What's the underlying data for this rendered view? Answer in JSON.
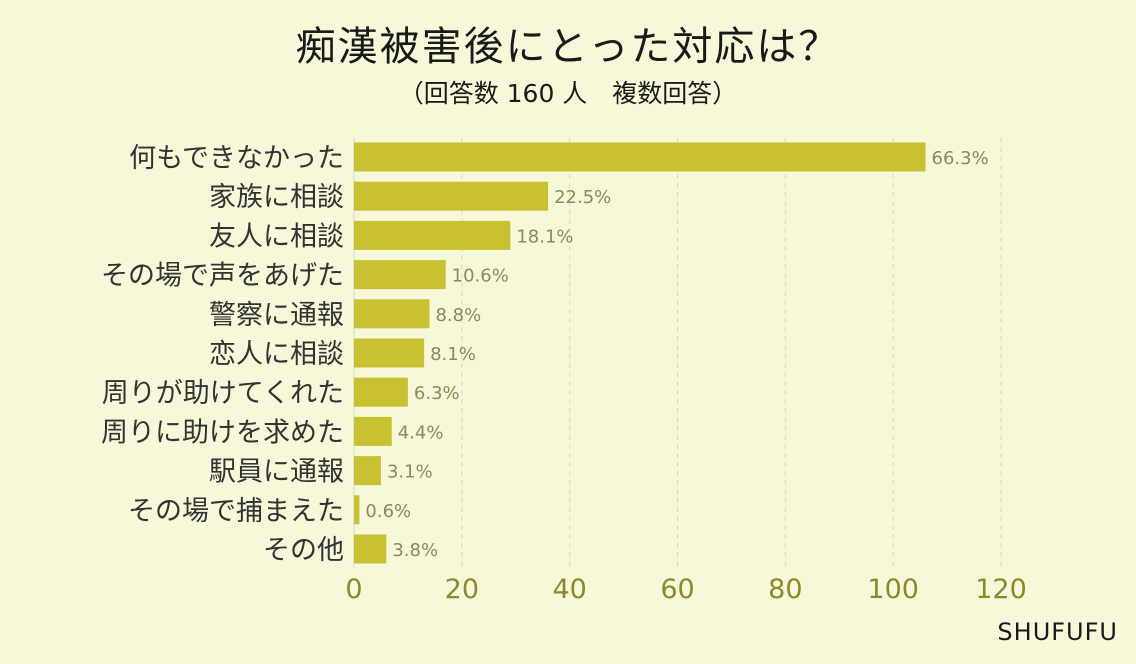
{
  "title": "痴漢被害後にとった対応は？",
  "subtitle": "（回答数 160 人　複数回答）",
  "brand": "SHUFUFU",
  "colors": {
    "bar": "#c8c232",
    "background": "#f7f7da",
    "axis_tick": "#8a8a2a",
    "grid": "#d8d8c0"
  },
  "chart_data": {
    "type": "bar",
    "orientation": "horizontal",
    "categories": [
      "何もできなかった",
      "家族に相談",
      "友人に相談",
      "その場で声をあげた",
      "警察に通報",
      "恋人に相談",
      "周りが助けてくれた",
      "周りに助けを求めた",
      "駅員に通報",
      "その場で捕まえた",
      "その他"
    ],
    "values": [
      106,
      36,
      29,
      17,
      14,
      13,
      10,
      7,
      5,
      1,
      6
    ],
    "data_labels": [
      "66.3%",
      "22.5%",
      "18.1%",
      "10.6%",
      "8.8%",
      "8.1%",
      "6.3%",
      "4.4%",
      "3.1%",
      "0.6%",
      "3.8%"
    ],
    "xlim": [
      0,
      120
    ],
    "xticks": [
      "0",
      "20",
      "40",
      "60",
      "80",
      "100",
      "120"
    ],
    "grid": true
  }
}
